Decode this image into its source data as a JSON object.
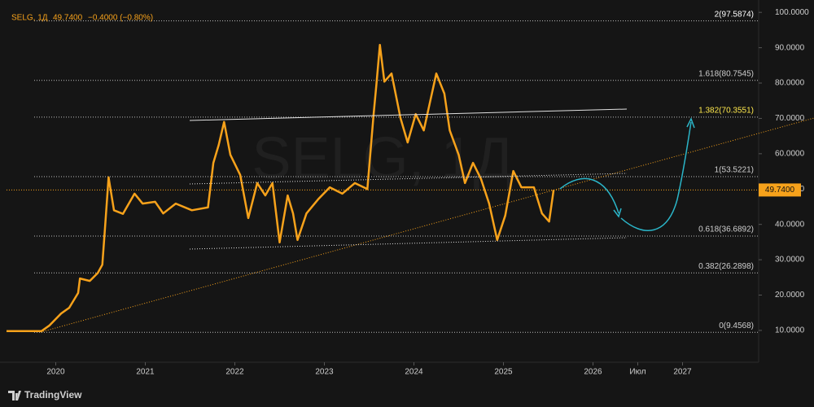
{
  "chart_data": {
    "type": "line",
    "legend": {
      "symbol": "SELG, 1Д",
      "price": "49.7400",
      "change": "−0.4000 (−0.80%)"
    },
    "series": [
      {
        "name": "SELG",
        "color": "#f7a21b",
        "x": [
          2019.45,
          2019.84,
          2019.93,
          2020.06,
          2020.15,
          2020.25,
          2020.27,
          2020.38,
          2020.47,
          2020.52,
          2020.55,
          2020.59,
          2020.65,
          2020.75,
          2020.88,
          2020.97,
          2021.11,
          2021.2,
          2021.34,
          2021.52,
          2021.7,
          2021.76,
          2021.82,
          2021.88,
          2021.95,
          2022.06,
          2022.15,
          2022.25,
          2022.34,
          2022.42,
          2022.5,
          2022.59,
          2022.65,
          2022.7,
          2022.8,
          2022.93,
          2023.06,
          2023.2,
          2023.34,
          2023.48,
          2023.55,
          2023.58,
          2023.62,
          2023.67,
          2023.75,
          2023.85,
          2023.93,
          2024.02,
          2024.11,
          2024.25,
          2024.34,
          2024.4,
          2024.5,
          2024.57,
          2024.66,
          2024.75,
          2024.84,
          2024.93,
          2025.02,
          2025.11,
          2025.2,
          2025.34,
          2025.43,
          2025.51,
          2025.56
        ],
        "values": [
          9.8,
          9.8,
          11.4,
          14.8,
          16.4,
          20.6,
          24.7,
          24,
          26.3,
          28.6,
          39,
          53.3,
          44,
          43,
          48.7,
          45.9,
          46.4,
          43.1,
          45.9,
          44,
          44.8,
          57.4,
          62.5,
          69,
          59.7,
          54,
          41.8,
          51.7,
          48.2,
          51.7,
          34.9,
          48.2,
          43.1,
          35.6,
          43.1,
          47.1,
          50.5,
          48.7,
          51.7,
          50,
          71.2,
          79.3,
          90.8,
          80.4,
          82.7,
          70.1,
          63.2,
          71.2,
          66.6,
          82.7,
          77,
          66.6,
          59.7,
          51.7,
          57.4,
          52.8,
          45.9,
          35.6,
          42.5,
          55.1,
          50.5,
          50.5,
          43.1,
          40.8,
          49.74
        ]
      }
    ],
    "price_label": {
      "value": 49.74,
      "label": "49.7400"
    },
    "levels": [
      {
        "value": 97.5874,
        "label": "2(97.5874)",
        "color": "#ffffff"
      },
      {
        "value": 80.7545,
        "label": "1.618(80.7545)",
        "color": "#cfcfcf"
      },
      {
        "value": 70.3551,
        "label": "1.382(70.3551)",
        "color": "#ffe94d"
      },
      {
        "value": 53.5221,
        "label": "1(53.5221)",
        "color": "#cfcfcf"
      },
      {
        "value": 36.6892,
        "label": "0.618(36.6892)",
        "color": "#cfcfcf"
      },
      {
        "value": 26.2898,
        "label": "0.382(26.2898)",
        "color": "#cfcfcf"
      },
      {
        "value": 9.4568,
        "label": "0(9.4568)",
        "color": "#cfcfcf"
      }
    ],
    "xlim": [
      2019.45,
      2027.85
    ],
    "xticks": [
      2020,
      2021,
      2022,
      2023,
      2024,
      2025,
      2026,
      {
        "value": 2026.5,
        "label": "Июл"
      },
      2027
    ],
    "ylim": [
      1,
      103.5
    ],
    "yticks": [
      {
        "value": 100,
        "label": "100.0000"
      },
      {
        "value": 90,
        "label": "90.0000"
      },
      {
        "value": 80,
        "label": "80.0000"
      },
      {
        "value": 70,
        "label": "70.0000"
      },
      {
        "value": 60,
        "label": "60.0000"
      },
      {
        "value": 50,
        "label": "50.0000"
      },
      {
        "value": 40,
        "label": "40.0000"
      },
      {
        "value": 30,
        "label": "30.0000"
      },
      {
        "value": 20,
        "label": "20.0000"
      },
      {
        "value": 10,
        "label": "10.0000"
      }
    ],
    "grid": false,
    "branding": "TradingView"
  }
}
